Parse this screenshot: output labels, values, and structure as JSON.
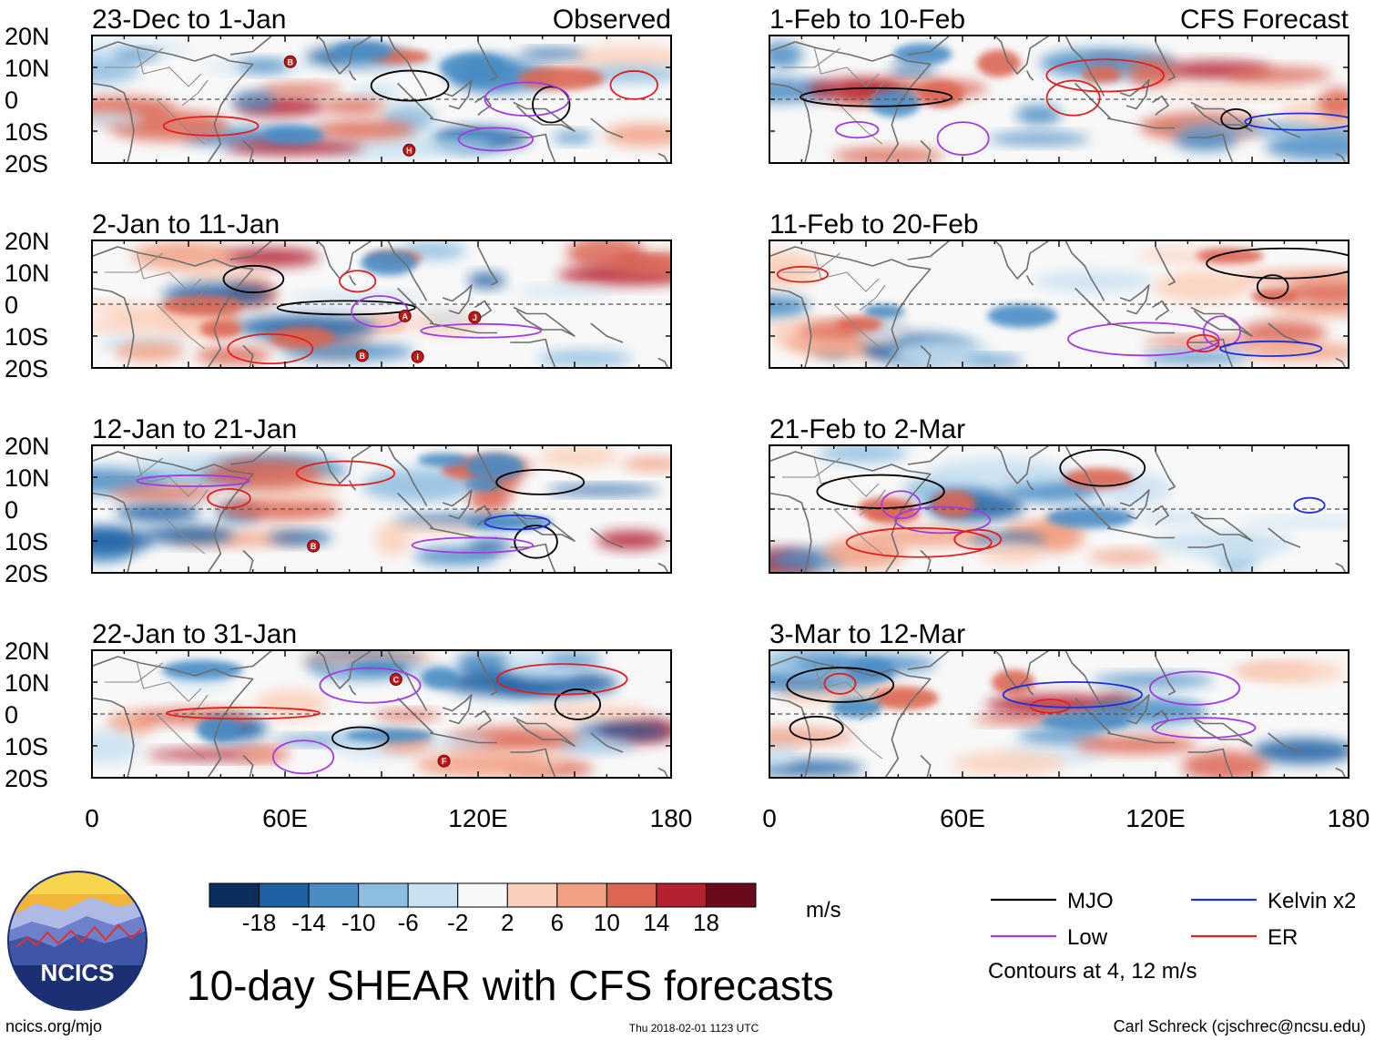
{
  "chart_data": {
    "type": "heatmap",
    "title": "10-day SHEAR with CFS forecasts",
    "unit": "m/s",
    "lat_ticks": [
      "20N",
      "10N",
      "0",
      "10S",
      "20S"
    ],
    "lat_values": [
      20,
      10,
      0,
      -10,
      -20
    ],
    "lon_ticks": [
      "0",
      "60E",
      "120E",
      "180"
    ],
    "lon_values": [
      0,
      60,
      120,
      180
    ],
    "xlim": [
      0,
      180
    ],
    "ylim": [
      -20,
      20
    ],
    "colorbar": {
      "tick_labels": [
        "-18",
        "-14",
        "-10",
        "-6",
        "-2",
        "2",
        "6",
        "10",
        "14",
        "18"
      ],
      "colors": [
        "#0b2e5c",
        "#1f5fa3",
        "#4a8cc4",
        "#8dbde0",
        "#c9e1f1",
        "#f8f8f8",
        "#fbd0bb",
        "#f2a184",
        "#dc6652",
        "#b42131",
        "#6b0a1b"
      ]
    },
    "observed_label": "Observed",
    "forecast_label": "CFS Forecast",
    "panels": [
      {
        "period": "23-Dec to 1-Jan",
        "source": "observed"
      },
      {
        "period": "2-Jan to 11-Jan",
        "source": "observed"
      },
      {
        "period": "12-Jan to 21-Jan",
        "source": "observed"
      },
      {
        "period": "22-Jan to 31-Jan",
        "source": "observed"
      },
      {
        "period": "1-Feb to 10-Feb",
        "source": "forecast"
      },
      {
        "period": "11-Feb to 20-Feb",
        "source": "forecast"
      },
      {
        "period": "21-Feb to 2-Mar",
        "source": "forecast"
      },
      {
        "period": "3-Mar to 12-Mar",
        "source": "forecast"
      }
    ],
    "legend": [
      {
        "label": "MJO",
        "color": "#000000"
      },
      {
        "label": "Kelvin x2",
        "color": "#1f2fd6"
      },
      {
        "label": "Low",
        "color": "#a23ce0"
      },
      {
        "label": "ER",
        "color": "#e01f1f"
      }
    ],
    "contour_note": "Contours at 4, 12 m/s",
    "storm_markers": [
      [
        "B",
        "H"
      ],
      [
        "B",
        "A",
        "I",
        "J"
      ],
      [
        "B"
      ],
      [
        "C",
        "F"
      ]
    ]
  },
  "footer": {
    "logo_text": "NCICS",
    "url": "ncics.org/mjo",
    "timestamp": "Thu 2018-02-01 1123 UTC",
    "author": "Carl Schreck (cjschrec@ncsu.edu)"
  }
}
